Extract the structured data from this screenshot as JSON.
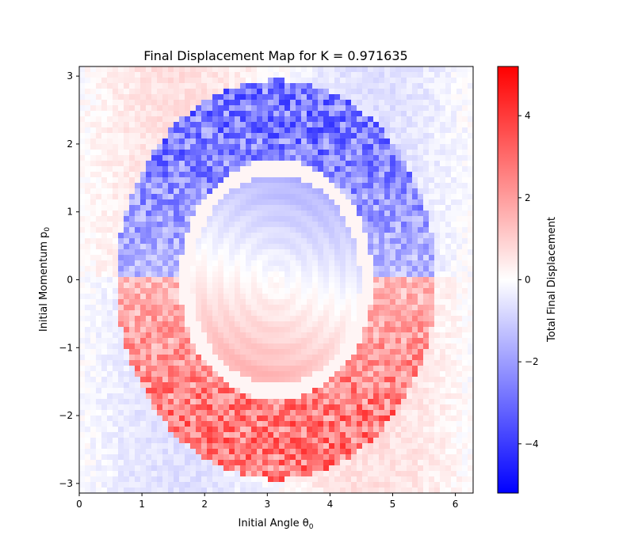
{
  "chart_data": {
    "type": "heatmap",
    "title": "Final Displacement Map for K = 0.971635",
    "xlabel": "Initial Angle θ",
    "xlabel_sub": "0",
    "ylabel": "Initial Momentum p",
    "ylabel_sub": "0",
    "xlim": [
      0,
      6.283185
    ],
    "ylim": [
      -3.141593,
      3.141593
    ],
    "x_ticks": [
      0,
      1,
      2,
      3,
      4,
      5,
      6
    ],
    "y_ticks": [
      -3,
      -2,
      -1,
      0,
      1,
      2,
      3
    ],
    "x_tick_labels": [
      "0",
      "1",
      "2",
      "3",
      "4",
      "5",
      "6"
    ],
    "y_tick_labels": [
      "−3",
      "−2",
      "−1",
      "0",
      "1",
      "2",
      "3"
    ],
    "colorbar": {
      "label": "Total Final Displacement",
      "colormap": "bwr",
      "vmin": -5.2,
      "vmax": 5.2,
      "ticks": [
        -4,
        -2,
        0,
        2,
        4
      ],
      "tick_labels": [
        "−4",
        "−2",
        "0",
        "2",
        "4"
      ],
      "colors": {
        "low": "#0000ff",
        "mid": "#ffffff",
        "high": "#ff0000"
      }
    },
    "parameter_K": 0.971635,
    "grid": false,
    "legend": "none"
  }
}
